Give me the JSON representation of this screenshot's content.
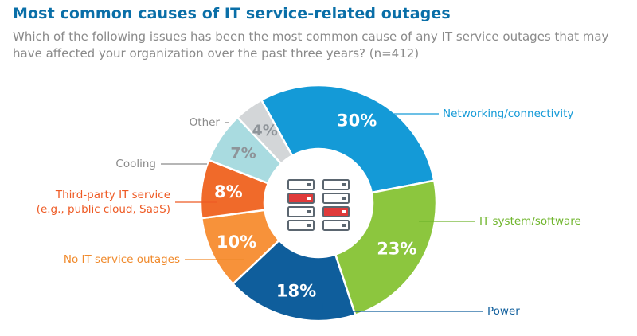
{
  "title": "Most common causes of IT service-related outages",
  "subtitle": "Which of the following issues has been the most common cause of any IT service outages that may have affected your organization over the past three years? (n=412)",
  "chart_data": {
    "type": "pie",
    "style": "donut",
    "center_icon": "server-rack-icon",
    "slices": [
      {
        "label": "Networking/connectivity",
        "value": 30,
        "pct": "30%",
        "color": "#149ad7",
        "label_color": "#149ad7"
      },
      {
        "label": "IT system/software",
        "value": 23,
        "pct": "23%",
        "color": "#8cc63e",
        "label_color": "#6fb52c"
      },
      {
        "label": "Power",
        "value": 18,
        "pct": "18%",
        "color": "#0f5e9c",
        "label_color": "#0f5e9c"
      },
      {
        "label": "No IT service outages",
        "value": 10,
        "pct": "10%",
        "color": "#f7923a",
        "label_color": "#f08a2c"
      },
      {
        "label": "Third-party IT service\n(e.g., public cloud, SaaS)",
        "value": 8,
        "pct": "8%",
        "color": "#f06a2a",
        "label_color": "#ee5a24"
      },
      {
        "label": "Cooling",
        "value": 7,
        "pct": "7%",
        "color": "#a9dbe0",
        "label_color": "#8a8a8a"
      },
      {
        "label": "Other",
        "value": 4,
        "pct": "4%",
        "color": "#d3d6d8",
        "label_color": "#8a8a8a"
      }
    ]
  }
}
